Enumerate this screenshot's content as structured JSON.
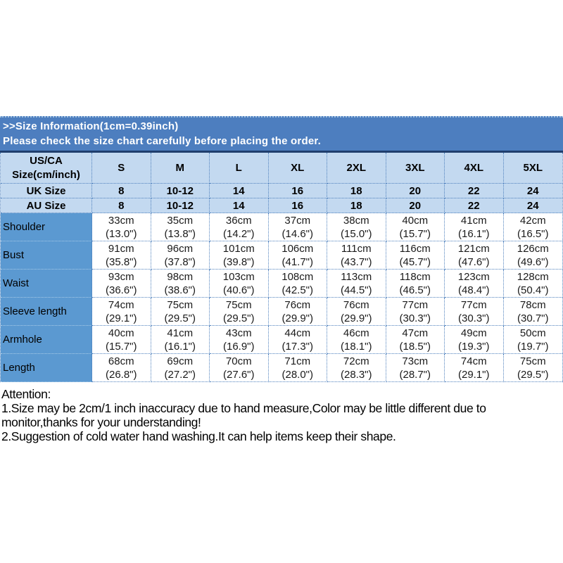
{
  "banner": {
    "title": ">>Size Information(1cm=0.39inch)",
    "subtitle": "Please check the size chart carefully before placing the order."
  },
  "table": {
    "corner_label": "US/CA\nSize(cm/inch)",
    "size_headers": [
      "S",
      "M",
      "L",
      "XL",
      "2XL",
      "3XL",
      "4XL",
      "5XL"
    ],
    "rows": [
      {
        "label": "UK Size",
        "type": "size",
        "values": [
          "8",
          "10-12",
          "14",
          "16",
          "18",
          "20",
          "22",
          "24"
        ]
      },
      {
        "label": "AU Size",
        "type": "size",
        "values": [
          "8",
          "10-12",
          "14",
          "16",
          "18",
          "20",
          "22",
          "24"
        ]
      },
      {
        "label": "Shoulder",
        "type": "measure",
        "values": [
          "33cm\n(13.0\")",
          "35cm\n(13.8\")",
          "36cm\n(14.2\")",
          "37cm\n(14.6\")",
          "38cm\n(15.0\")",
          "40cm\n(15.7\")",
          "41cm\n(16.1\")",
          "42cm\n(16.5\")"
        ]
      },
      {
        "label": "Bust",
        "type": "measure",
        "values": [
          "91cm\n(35.8\")",
          "96cm\n(37.8\")",
          "101cm\n(39.8\")",
          "106cm\n(41.7\")",
          "111cm\n(43.7\")",
          "116cm\n(45.7\")",
          "121cm\n(47.6\")",
          "126cm\n(49.6\")"
        ]
      },
      {
        "label": "Waist",
        "type": "measure",
        "values": [
          "93cm\n(36.6\")",
          "98cm\n(38.6\")",
          "103cm\n(40.6\")",
          "108cm\n(42.5\")",
          "113cm\n(44.5\")",
          "118cm\n(46.5\")",
          "123cm\n(48.4\")",
          "128cm\n(50.4\")"
        ]
      },
      {
        "label": "Sleeve length",
        "type": "measure",
        "values": [
          "74cm\n(29.1\")",
          "75cm\n(29.5\")",
          "75cm\n(29.5\")",
          "76cm\n(29.9\")",
          "76cm\n(29.9\")",
          "77cm\n(30.3\")",
          "77cm\n(30.3\")",
          "78cm\n(30.7\")"
        ]
      },
      {
        "label": "Armhole",
        "type": "measure",
        "values": [
          "40cm\n(15.7\")",
          "41cm\n(16.1\")",
          "43cm\n(16.9\")",
          "44cm\n(17.3\")",
          "46cm\n(18.1\")",
          "47cm\n(18.5\")",
          "49cm\n(19.3\")",
          "50cm\n(19.7\")"
        ]
      },
      {
        "label": "Length",
        "type": "measure",
        "values": [
          "68cm\n(26.8\")",
          "69cm\n(27.2\")",
          "70cm\n(27.6\")",
          "71cm\n(28.0\")",
          "72cm\n(28.3\")",
          "73cm\n(28.7\")",
          "74cm\n(29.1\")",
          "75cm\n(29.5\")"
        ]
      }
    ]
  },
  "attention": {
    "title": "Attention:",
    "note1": "1.Size may be 2cm/1 inch inaccuracy due to hand measure,Color may be little different due to monitor,thanks for your understanding!",
    "note2": "2.Suggestion of cold water hand washing.It can help items keep their shape."
  },
  "colors": {
    "banner_blue": "#4d7ebf",
    "light_blue": "#c3d9f0",
    "label_blue": "#5b99d1",
    "divider_navy": "#1f3e6d",
    "dotted_border": "#4f81bd"
  }
}
